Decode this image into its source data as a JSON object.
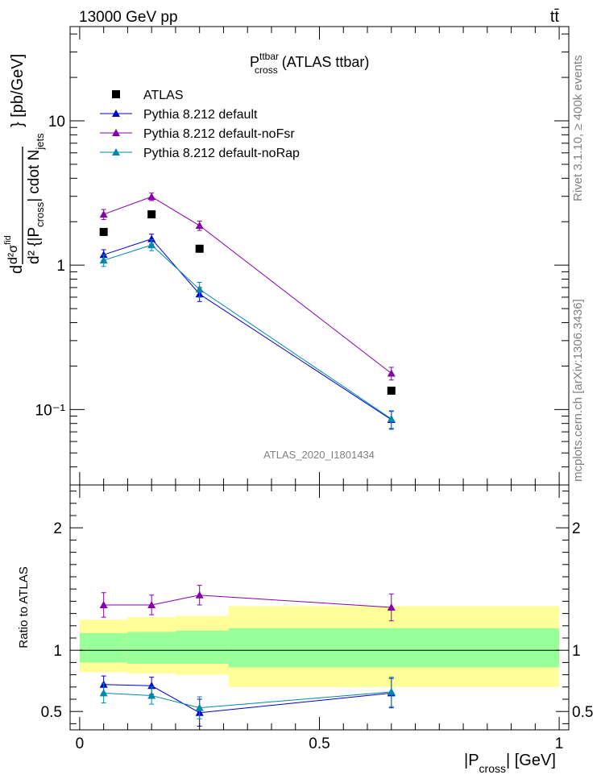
{
  "header": {
    "energy": "13000 GeV pp",
    "process": "tt̄"
  },
  "side_labels": {
    "rivet": "Rivet 3.1.10, ≥ 400k events",
    "mcplots": "mcplots.cern.ch [arXiv:1306.3436]"
  },
  "chart_data": [
    {
      "type": "line",
      "panel": "main",
      "title_main": "P",
      "title_sup": "ttbar",
      "title_sub": "cross",
      "title_rest": " (ATLAS ttbar)",
      "analysis_label": "ATLAS_2020_I1801434",
      "yscale": "log",
      "ylim": [
        0.03,
        45
      ],
      "xlim": [
        -0.02,
        1.02
      ],
      "ytick_labels": [
        "10⁻¹",
        "1",
        "10"
      ],
      "ylabel_parts": {
        "d": "d",
        "num": "d²σ",
        "num_sup": "fid",
        "den1": "d² {|P",
        "den1_sub": "cross",
        "den2": "| cdot N",
        "den2_sub": "jets",
        "tail": "} [pb/GeV]"
      },
      "series": [
        {
          "name": "ATLAS",
          "kind": "data",
          "color": "#000000",
          "x": [
            0.05,
            0.15,
            0.25,
            0.65
          ],
          "y": [
            1.7,
            2.25,
            1.3,
            0.135
          ],
          "err": [
            0,
            0,
            0,
            0
          ]
        },
        {
          "name": "Pythia 8.212 default",
          "kind": "mc",
          "color": "#0000cc",
          "x": [
            0.05,
            0.15,
            0.25,
            0.65
          ],
          "y": [
            1.18,
            1.52,
            0.63,
            0.085
          ],
          "err": [
            0.1,
            0.12,
            0.07,
            0.012
          ]
        },
        {
          "name": "Pythia 8.212 default-noFsr",
          "kind": "mc",
          "color": "#8800aa",
          "x": [
            0.05,
            0.15,
            0.25,
            0.65
          ],
          "y": [
            2.25,
            2.98,
            1.88,
            0.178
          ],
          "err": [
            0.18,
            0.18,
            0.14,
            0.018
          ]
        },
        {
          "name": "Pythia 8.212 default-noRap",
          "kind": "mc",
          "color": "#0088aa",
          "x": [
            0.05,
            0.15,
            0.25,
            0.65
          ],
          "y": [
            1.08,
            1.38,
            0.68,
            0.086
          ],
          "err": [
            0.1,
            0.12,
            0.08,
            0.012
          ]
        }
      ]
    },
    {
      "type": "line",
      "panel": "ratio",
      "ylabel": "Ratio to ATLAS",
      "xlabel_pre": "|P",
      "xlabel_sub": "cross",
      "xlabel_post": "| [GeV]",
      "ylim": [
        0.35,
        2.35
      ],
      "xlim": [
        -0.02,
        1.02
      ],
      "yticks": [
        0.5,
        1,
        2
      ],
      "ytick_labels": [
        "0.5",
        "1",
        "2"
      ],
      "xticks": [
        0,
        0.5,
        1
      ],
      "xtick_labels": [
        "0",
        "0.5",
        "1"
      ],
      "bands": {
        "bins": [
          [
            0,
            0.1
          ],
          [
            0.1,
            0.2
          ],
          [
            0.2,
            0.31
          ],
          [
            0.31,
            1.0
          ]
        ],
        "yellow": [
          [
            0.82,
            1.25
          ],
          [
            0.81,
            1.27
          ],
          [
            0.8,
            1.28
          ],
          [
            0.7,
            1.36
          ]
        ],
        "green": [
          [
            0.9,
            1.14
          ],
          [
            0.89,
            1.15
          ],
          [
            0.89,
            1.16
          ],
          [
            0.86,
            1.18
          ]
        ],
        "yellow_color": "#ffff99",
        "green_color": "#99ff99"
      },
      "series": [
        {
          "name": "Pythia 8.212 default",
          "color": "#0000cc",
          "x": [
            0.05,
            0.15,
            0.25,
            0.65
          ],
          "y": [
            0.72,
            0.71,
            0.49,
            0.65
          ],
          "err": [
            0.07,
            0.07,
            0.11,
            0.12
          ]
        },
        {
          "name": "Pythia 8.212 default-noFsr",
          "color": "#8800aa",
          "x": [
            0.05,
            0.15,
            0.25,
            0.65
          ],
          "y": [
            1.37,
            1.37,
            1.45,
            1.35
          ],
          "err": [
            0.1,
            0.08,
            0.08,
            0.11
          ]
        },
        {
          "name": "Pythia 8.212 default-noRap",
          "color": "#0088aa",
          "x": [
            0.05,
            0.15,
            0.25,
            0.65
          ],
          "y": [
            0.65,
            0.63,
            0.53,
            0.66
          ],
          "err": [
            0.08,
            0.07,
            0.09,
            0.12
          ]
        }
      ]
    }
  ]
}
